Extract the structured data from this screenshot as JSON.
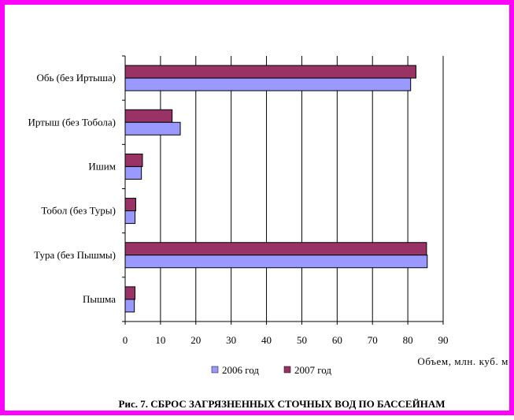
{
  "frame_color": "#ff00ff",
  "chart_data": {
    "type": "bar",
    "orientation": "horizontal",
    "categories": [
      "Обь (без Иртыша)",
      "Иртыш (без Тобола)",
      "Ишим",
      "Тобол (без Туры)",
      "Тура (без Пышмы)",
      "Пышма"
    ],
    "series": [
      {
        "name": "2007 год",
        "color": "#993366",
        "values": [
          82.3,
          13.3,
          4.9,
          3.0,
          85.3,
          2.8
        ]
      },
      {
        "name": "2006 год",
        "color": "#9999ff",
        "values": [
          80.8,
          15.6,
          4.6,
          2.8,
          85.5,
          2.6
        ]
      }
    ],
    "xlim": [
      0,
      90
    ],
    "xticks": [
      0,
      10,
      20,
      30,
      40,
      50,
      60,
      70,
      80,
      90
    ],
    "xlabel": "Объем, млн. куб. м",
    "ylabel": "",
    "grid": "vertical",
    "legend": {
      "position": "bottom",
      "items": [
        {
          "label": "2006 год",
          "color": "#9999ff"
        },
        {
          "label": "2007 год",
          "color": "#993366"
        }
      ]
    },
    "caption": "Рис. 7.  СБРОС ЗАГРЯЗНЕННЫХ СТОЧНЫХ ВОД ПО БАССЕЙНАМ"
  }
}
